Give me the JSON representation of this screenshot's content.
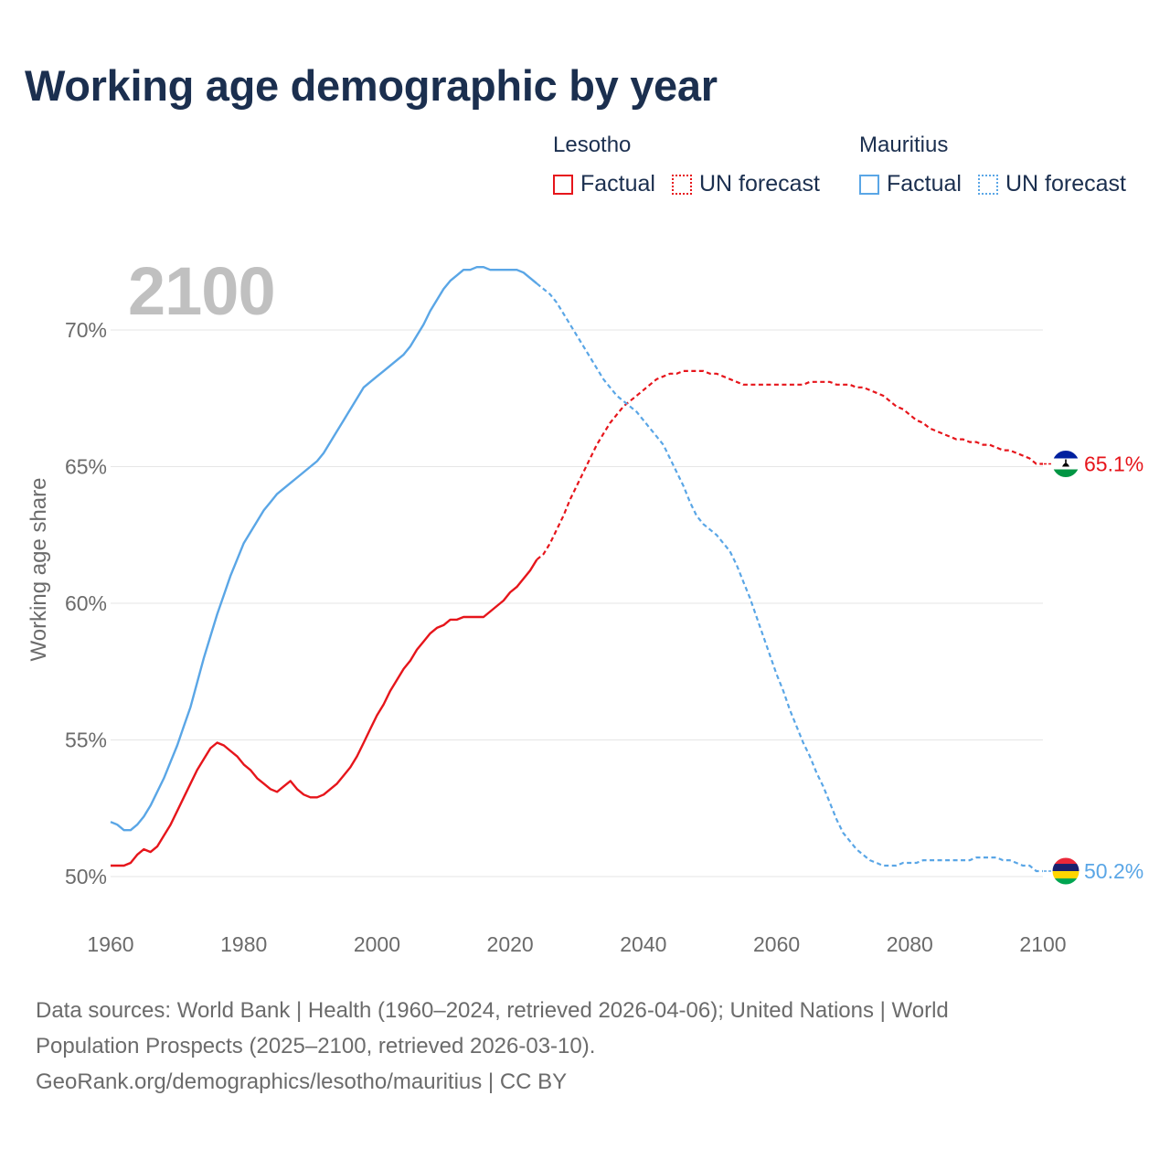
{
  "title": "Working age demographic by year",
  "current_year": "2100",
  "legend": {
    "groups": [
      {
        "name": "Lesotho",
        "color": "#e6151b",
        "factual_label": "Factual",
        "forecast_label": "UN forecast"
      },
      {
        "name": "Mauritius",
        "color": "#5aa6e6",
        "factual_label": "Factual",
        "forecast_label": "UN forecast"
      }
    ]
  },
  "footer": {
    "line1": "Data sources: World Bank | Health (1960–2024, retrieved 2026-04-06); United Nations | World",
    "line2": "Population Prospects (2025–2100, retrieved 2026-03-10).",
    "line3": "GeoRank.org/demographics/lesotho/mauritius | CC BY"
  },
  "chart_data": {
    "type": "line",
    "title": "Working age demographic by year",
    "ylabel": "Working age share",
    "xlabel": "",
    "xlim": [
      1960,
      2100
    ],
    "ylim": [
      49.5,
      72.5
    ],
    "x_ticks": [
      1960,
      1980,
      2000,
      2020,
      2040,
      2060,
      2080,
      2100
    ],
    "x_tick_labels": [
      "1960",
      "1980",
      "2000",
      "2020",
      "2040",
      "2060",
      "2080",
      "2100"
    ],
    "y_ticks": [
      50,
      55,
      60,
      65,
      70
    ],
    "y_tick_labels": [
      "50%",
      "55%",
      "60%",
      "65%",
      "70%"
    ],
    "factual_end_year": 2024,
    "series": [
      {
        "name": "Lesotho",
        "color": "#e6151b",
        "end_label": "65.1%",
        "flag": "lesotho",
        "points": [
          [
            1960,
            50.4
          ],
          [
            1962,
            50.4
          ],
          [
            1963,
            50.5
          ],
          [
            1964,
            50.8
          ],
          [
            1965,
            51.0
          ],
          [
            1966,
            50.9
          ],
          [
            1967,
            51.1
          ],
          [
            1968,
            51.5
          ],
          [
            1969,
            51.9
          ],
          [
            1970,
            52.4
          ],
          [
            1971,
            52.9
          ],
          [
            1972,
            53.4
          ],
          [
            1973,
            53.9
          ],
          [
            1974,
            54.3
          ],
          [
            1975,
            54.7
          ],
          [
            1976,
            54.9
          ],
          [
            1977,
            54.8
          ],
          [
            1978,
            54.6
          ],
          [
            1979,
            54.4
          ],
          [
            1980,
            54.1
          ],
          [
            1981,
            53.9
          ],
          [
            1982,
            53.6
          ],
          [
            1983,
            53.4
          ],
          [
            1984,
            53.2
          ],
          [
            1985,
            53.1
          ],
          [
            1986,
            53.3
          ],
          [
            1987,
            53.5
          ],
          [
            1988,
            53.2
          ],
          [
            1989,
            53.0
          ],
          [
            1990,
            52.9
          ],
          [
            1991,
            52.9
          ],
          [
            1992,
            53.0
          ],
          [
            1993,
            53.2
          ],
          [
            1994,
            53.4
          ],
          [
            1995,
            53.7
          ],
          [
            1996,
            54.0
          ],
          [
            1997,
            54.4
          ],
          [
            1998,
            54.9
          ],
          [
            1999,
            55.4
          ],
          [
            2000,
            55.9
          ],
          [
            2001,
            56.3
          ],
          [
            2002,
            56.8
          ],
          [
            2003,
            57.2
          ],
          [
            2004,
            57.6
          ],
          [
            2005,
            57.9
          ],
          [
            2006,
            58.3
          ],
          [
            2007,
            58.6
          ],
          [
            2008,
            58.9
          ],
          [
            2009,
            59.1
          ],
          [
            2010,
            59.2
          ],
          [
            2011,
            59.4
          ],
          [
            2012,
            59.4
          ],
          [
            2013,
            59.5
          ],
          [
            2014,
            59.5
          ],
          [
            2015,
            59.5
          ],
          [
            2016,
            59.5
          ],
          [
            2017,
            59.7
          ],
          [
            2018,
            59.9
          ],
          [
            2019,
            60.1
          ],
          [
            2020,
            60.4
          ],
          [
            2021,
            60.6
          ],
          [
            2022,
            60.9
          ],
          [
            2023,
            61.2
          ],
          [
            2024,
            61.6
          ],
          [
            2025,
            61.8
          ],
          [
            2026,
            62.2
          ],
          [
            2027,
            62.7
          ],
          [
            2028,
            63.2
          ],
          [
            2029,
            63.8
          ],
          [
            2030,
            64.3
          ],
          [
            2031,
            64.8
          ],
          [
            2032,
            65.3
          ],
          [
            2033,
            65.8
          ],
          [
            2034,
            66.2
          ],
          [
            2035,
            66.6
          ],
          [
            2036,
            66.9
          ],
          [
            2037,
            67.2
          ],
          [
            2038,
            67.4
          ],
          [
            2039,
            67.6
          ],
          [
            2040,
            67.8
          ],
          [
            2041,
            68.0
          ],
          [
            2042,
            68.2
          ],
          [
            2043,
            68.3
          ],
          [
            2044,
            68.4
          ],
          [
            2045,
            68.4
          ],
          [
            2046,
            68.5
          ],
          [
            2047,
            68.5
          ],
          [
            2048,
            68.5
          ],
          [
            2049,
            68.5
          ],
          [
            2050,
            68.4
          ],
          [
            2051,
            68.4
          ],
          [
            2052,
            68.3
          ],
          [
            2053,
            68.2
          ],
          [
            2054,
            68.1
          ],
          [
            2055,
            68.0
          ],
          [
            2056,
            68.0
          ],
          [
            2057,
            68.0
          ],
          [
            2058,
            68.0
          ],
          [
            2059,
            68.0
          ],
          [
            2060,
            68.0
          ],
          [
            2061,
            68.0
          ],
          [
            2062,
            68.0
          ],
          [
            2063,
            68.0
          ],
          [
            2064,
            68.0
          ],
          [
            2065,
            68.1
          ],
          [
            2066,
            68.1
          ],
          [
            2067,
            68.1
          ],
          [
            2068,
            68.1
          ],
          [
            2069,
            68.0
          ],
          [
            2070,
            68.0
          ],
          [
            2071,
            68.0
          ],
          [
            2072,
            67.9
          ],
          [
            2073,
            67.9
          ],
          [
            2074,
            67.8
          ],
          [
            2075,
            67.7
          ],
          [
            2076,
            67.6
          ],
          [
            2077,
            67.4
          ],
          [
            2078,
            67.2
          ],
          [
            2079,
            67.1
          ],
          [
            2080,
            66.9
          ],
          [
            2081,
            66.7
          ],
          [
            2082,
            66.6
          ],
          [
            2083,
            66.4
          ],
          [
            2084,
            66.3
          ],
          [
            2085,
            66.2
          ],
          [
            2086,
            66.1
          ],
          [
            2087,
            66.0
          ],
          [
            2088,
            66.0
          ],
          [
            2089,
            65.9
          ],
          [
            2090,
            65.9
          ],
          [
            2091,
            65.8
          ],
          [
            2092,
            65.8
          ],
          [
            2093,
            65.7
          ],
          [
            2094,
            65.6
          ],
          [
            2095,
            65.6
          ],
          [
            2096,
            65.5
          ],
          [
            2097,
            65.4
          ],
          [
            2098,
            65.3
          ],
          [
            2099,
            65.1
          ],
          [
            2100,
            65.1
          ]
        ]
      },
      {
        "name": "Mauritius",
        "color": "#5aa6e6",
        "end_label": "50.2%",
        "flag": "mauritius",
        "points": [
          [
            1960,
            52.0
          ],
          [
            1961,
            51.9
          ],
          [
            1962,
            51.7
          ],
          [
            1963,
            51.7
          ],
          [
            1964,
            51.9
          ],
          [
            1965,
            52.2
          ],
          [
            1966,
            52.6
          ],
          [
            1967,
            53.1
          ],
          [
            1968,
            53.6
          ],
          [
            1969,
            54.2
          ],
          [
            1970,
            54.8
          ],
          [
            1971,
            55.5
          ],
          [
            1972,
            56.2
          ],
          [
            1973,
            57.1
          ],
          [
            1974,
            58.0
          ],
          [
            1975,
            58.8
          ],
          [
            1976,
            59.6
          ],
          [
            1977,
            60.3
          ],
          [
            1978,
            61.0
          ],
          [
            1979,
            61.6
          ],
          [
            1980,
            62.2
          ],
          [
            1981,
            62.6
          ],
          [
            1982,
            63.0
          ],
          [
            1983,
            63.4
          ],
          [
            1984,
            63.7
          ],
          [
            1985,
            64.0
          ],
          [
            1986,
            64.2
          ],
          [
            1987,
            64.4
          ],
          [
            1988,
            64.6
          ],
          [
            1989,
            64.8
          ],
          [
            1990,
            65.0
          ],
          [
            1991,
            65.2
          ],
          [
            1992,
            65.5
          ],
          [
            1993,
            65.9
          ],
          [
            1994,
            66.3
          ],
          [
            1995,
            66.7
          ],
          [
            1996,
            67.1
          ],
          [
            1997,
            67.5
          ],
          [
            1998,
            67.9
          ],
          [
            1999,
            68.1
          ],
          [
            2000,
            68.3
          ],
          [
            2001,
            68.5
          ],
          [
            2002,
            68.7
          ],
          [
            2003,
            68.9
          ],
          [
            2004,
            69.1
          ],
          [
            2005,
            69.4
          ],
          [
            2006,
            69.8
          ],
          [
            2007,
            70.2
          ],
          [
            2008,
            70.7
          ],
          [
            2009,
            71.1
          ],
          [
            2010,
            71.5
          ],
          [
            2011,
            71.8
          ],
          [
            2012,
            72.0
          ],
          [
            2013,
            72.2
          ],
          [
            2014,
            72.2
          ],
          [
            2015,
            72.3
          ],
          [
            2016,
            72.3
          ],
          [
            2017,
            72.2
          ],
          [
            2018,
            72.2
          ],
          [
            2019,
            72.2
          ],
          [
            2020,
            72.2
          ],
          [
            2021,
            72.2
          ],
          [
            2022,
            72.1
          ],
          [
            2023,
            71.9
          ],
          [
            2024,
            71.7
          ],
          [
            2025,
            71.5
          ],
          [
            2026,
            71.3
          ],
          [
            2027,
            71.0
          ],
          [
            2028,
            70.6
          ],
          [
            2029,
            70.2
          ],
          [
            2030,
            69.8
          ],
          [
            2031,
            69.4
          ],
          [
            2032,
            69.0
          ],
          [
            2033,
            68.6
          ],
          [
            2034,
            68.2
          ],
          [
            2035,
            67.9
          ],
          [
            2036,
            67.6
          ],
          [
            2037,
            67.4
          ],
          [
            2038,
            67.2
          ],
          [
            2039,
            67.0
          ],
          [
            2040,
            66.7
          ],
          [
            2041,
            66.4
          ],
          [
            2042,
            66.1
          ],
          [
            2043,
            65.8
          ],
          [
            2044,
            65.3
          ],
          [
            2045,
            64.8
          ],
          [
            2046,
            64.3
          ],
          [
            2047,
            63.7
          ],
          [
            2048,
            63.2
          ],
          [
            2049,
            62.9
          ],
          [
            2050,
            62.7
          ],
          [
            2051,
            62.5
          ],
          [
            2052,
            62.2
          ],
          [
            2053,
            61.9
          ],
          [
            2054,
            61.4
          ],
          [
            2055,
            60.8
          ],
          [
            2056,
            60.2
          ],
          [
            2057,
            59.5
          ],
          [
            2058,
            58.8
          ],
          [
            2059,
            58.1
          ],
          [
            2060,
            57.4
          ],
          [
            2061,
            56.8
          ],
          [
            2062,
            56.1
          ],
          [
            2063,
            55.5
          ],
          [
            2064,
            54.9
          ],
          [
            2065,
            54.4
          ],
          [
            2066,
            53.8
          ],
          [
            2067,
            53.3
          ],
          [
            2068,
            52.7
          ],
          [
            2069,
            52.1
          ],
          [
            2070,
            51.6
          ],
          [
            2071,
            51.3
          ],
          [
            2072,
            51.0
          ],
          [
            2073,
            50.8
          ],
          [
            2074,
            50.6
          ],
          [
            2075,
            50.5
          ],
          [
            2076,
            50.4
          ],
          [
            2077,
            50.4
          ],
          [
            2078,
            50.4
          ],
          [
            2079,
            50.5
          ],
          [
            2080,
            50.5
          ],
          [
            2081,
            50.5
          ],
          [
            2082,
            50.6
          ],
          [
            2083,
            50.6
          ],
          [
            2084,
            50.6
          ],
          [
            2085,
            50.6
          ],
          [
            2086,
            50.6
          ],
          [
            2087,
            50.6
          ],
          [
            2088,
            50.6
          ],
          [
            2089,
            50.6
          ],
          [
            2090,
            50.7
          ],
          [
            2091,
            50.7
          ],
          [
            2092,
            50.7
          ],
          [
            2093,
            50.7
          ],
          [
            2094,
            50.6
          ],
          [
            2095,
            50.6
          ],
          [
            2096,
            50.5
          ],
          [
            2097,
            50.4
          ],
          [
            2098,
            50.4
          ],
          [
            2099,
            50.2
          ],
          [
            2100,
            50.2
          ]
        ]
      }
    ]
  }
}
